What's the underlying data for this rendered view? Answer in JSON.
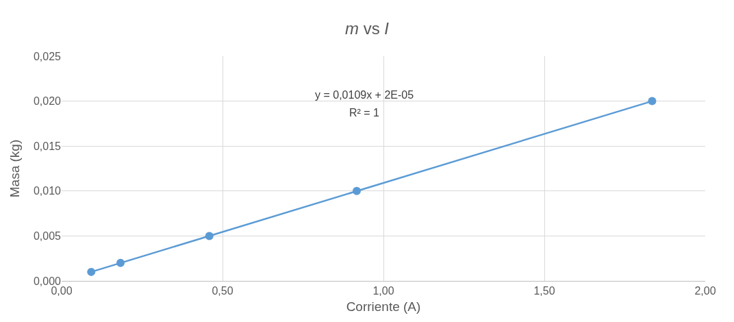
{
  "chart_data": {
    "type": "scatter",
    "title": "m vs I",
    "xlabel": "Corriente (A)",
    "ylabel": "Masa (kg)",
    "x": [
      0.092,
      0.183,
      0.459,
      0.917,
      1.835
    ],
    "series": [
      {
        "color": "#5b9bd5",
        "values": [
          0.001,
          0.002,
          0.005,
          0.01,
          0.02
        ]
      },
      {
        "type": "line",
        "marker": "none",
        "color": "#5b9bd5",
        "x": [
          0.092,
          1.835
        ],
        "values": [
          0.001,
          0.02
        ]
      }
    ],
    "xlim": [
      0,
      2
    ],
    "xticks": [
      {
        "value": 0,
        "label": "0,00"
      },
      {
        "value": 0.5,
        "label": "0,50"
      },
      {
        "value": 1,
        "label": "1,00"
      },
      {
        "value": 1.5,
        "label": "1,50"
      },
      {
        "value": 2,
        "label": "2,00"
      }
    ],
    "ylim": [
      0,
      0.025
    ],
    "yticks": [
      {
        "value": 0,
        "label": "0,000"
      },
      {
        "value": 0.005,
        "label": "0,005"
      },
      {
        "value": 0.01,
        "label": "0,010"
      },
      {
        "value": 0.015,
        "label": "0,015"
      },
      {
        "value": 0.02,
        "label": "0,020"
      },
      {
        "value": 0.025,
        "label": "0,025"
      }
    ],
    "annotations": [
      "y = 0,0109x + 2E-05",
      "R² = 1"
    ],
    "grid": true,
    "legend": false,
    "marker": "circle",
    "line_style": "solid"
  }
}
